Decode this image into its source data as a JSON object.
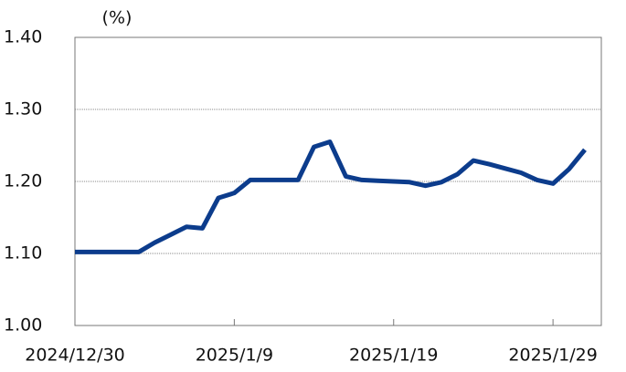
{
  "chart_data": {
    "type": "line",
    "y_unit_label": "(%)",
    "x": [
      "2024/12/30",
      "2024/12/31",
      "2025/1/1",
      "2025/1/2",
      "2025/1/3",
      "2025/1/4",
      "2025/1/5",
      "2025/1/6",
      "2025/1/7",
      "2025/1/8",
      "2025/1/9",
      "2025/1/10",
      "2025/1/11",
      "2025/1/12",
      "2025/1/13",
      "2025/1/14",
      "2025/1/15",
      "2025/1/16",
      "2025/1/17",
      "2025/1/18",
      "2025/1/19",
      "2025/1/20",
      "2025/1/21",
      "2025/1/22",
      "2025/1/23",
      "2025/1/24",
      "2025/1/25",
      "2025/1/26",
      "2025/1/27",
      "2025/1/28",
      "2025/1/29",
      "2025/1/30",
      "2025/1/31"
    ],
    "series": [
      {
        "color": "#0c3c8c",
        "values": [
          1.102,
          1.102,
          1.102,
          1.102,
          1.102,
          1.115,
          1.126,
          1.137,
          1.135,
          1.177,
          1.184,
          1.202,
          1.202,
          1.202,
          1.202,
          1.248,
          1.255,
          1.207,
          1.202,
          1.201,
          1.2,
          1.199,
          1.194,
          1.199,
          1.21,
          1.229,
          1.224,
          1.218,
          1.212,
          1.202,
          1.197,
          1.217,
          1.244
        ]
      }
    ],
    "xlim": [
      "2024/12/30",
      "2025/1/31"
    ],
    "xticks": [
      "2024/12/30",
      "2025/1/9",
      "2025/1/19",
      "2025/1/29"
    ],
    "ylim": [
      1.0,
      1.4
    ],
    "yticks": [
      {
        "value": 1.0,
        "label": "1.00"
      },
      {
        "value": 1.1,
        "label": "1.10"
      },
      {
        "value": 1.2,
        "label": "1.20"
      },
      {
        "value": 1.3,
        "label": "1.30"
      },
      {
        "value": 1.4,
        "label": "1.40"
      }
    ],
    "grid": true
  }
}
